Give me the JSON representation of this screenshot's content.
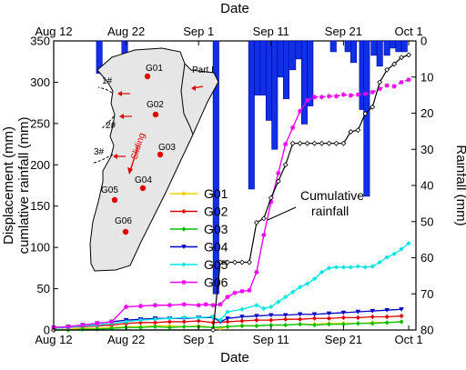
{
  "chart_data": {
    "type": "line",
    "xlabel": "Date",
    "x_top_label": "Date",
    "ylabel_left_line1": "Displacement (mm)",
    "ylabel_left_line2": "cumlative rainfall (mm)",
    "ylabel_right": "Rainfall (mm)",
    "xlim": [
      0,
      50
    ],
    "ylim_left": [
      0,
      350
    ],
    "ylim_right": [
      0,
      80
    ],
    "right_axis_inverted": true,
    "x_ticks": [
      {
        "x": 0,
        "label": "Aug 12"
      },
      {
        "x": 10,
        "label": "Aug 22"
      },
      {
        "x": 20,
        "label": "Sep 1"
      },
      {
        "x": 30,
        "label": "Sep 11"
      },
      {
        "x": 40,
        "label": "Sep 21"
      },
      {
        "x": 49,
        "label": "Oct 1"
      }
    ],
    "y_left_ticks": [
      0,
      50,
      100,
      150,
      200,
      250,
      300,
      350
    ],
    "y_right_ticks": [
      0,
      10,
      20,
      30,
      40,
      50,
      60,
      70,
      80
    ],
    "colors": {
      "G01": "#f0d000",
      "G02": "#e00000",
      "G03": "#00c000",
      "G04": "#0000c8",
      "G05": "#00e6e6",
      "G06": "#ee00ee",
      "cumulative": "#000000",
      "rainfall": "#1030e8"
    },
    "series": [
      {
        "name": "G01",
        "marker": "diamond",
        "x": [
          0,
          2,
          4,
          6,
          8,
          10,
          12,
          14,
          16,
          18,
          20,
          22,
          23,
          24,
          26,
          28,
          30,
          32,
          34,
          36,
          38,
          40,
          42,
          44,
          46,
          48
        ],
        "y": [
          0,
          1,
          2,
          2,
          3,
          4,
          4,
          5,
          5,
          4,
          5,
          3,
          2,
          4,
          5,
          5,
          6,
          6,
          7,
          7,
          8,
          8,
          8,
          9,
          9,
          10
        ]
      },
      {
        "name": "G02",
        "marker": "diamond",
        "x": [
          0,
          2,
          4,
          6,
          8,
          10,
          12,
          14,
          16,
          18,
          20,
          22,
          24,
          26,
          28,
          30,
          32,
          34,
          36,
          38,
          40,
          42,
          44,
          46,
          48
        ],
        "y": [
          2,
          3,
          4,
          5,
          6,
          8,
          9,
          9,
          10,
          10,
          11,
          9,
          10,
          11,
          12,
          12,
          13,
          13,
          14,
          14,
          15,
          15,
          16,
          16,
          17
        ]
      },
      {
        "name": "G03",
        "marker": "diamond",
        "x": [
          0,
          2,
          4,
          6,
          8,
          10,
          12,
          14,
          16,
          18,
          20,
          22,
          24,
          26,
          28,
          30,
          32,
          34,
          36,
          38,
          40,
          42,
          44,
          46,
          48
        ],
        "y": [
          0,
          0,
          1,
          1,
          2,
          3,
          3,
          4,
          3,
          4,
          4,
          3,
          4,
          5,
          5,
          6,
          6,
          7,
          6,
          7,
          7,
          8,
          8,
          9,
          10
        ]
      },
      {
        "name": "G04",
        "marker": "triangle-down",
        "x": [
          0,
          2,
          4,
          6,
          8,
          10,
          12,
          14,
          16,
          18,
          20,
          22,
          23,
          24,
          26,
          28,
          30,
          32,
          34,
          36,
          38,
          40,
          42,
          44,
          46,
          48
        ],
        "y": [
          3,
          4,
          6,
          8,
          10,
          12,
          13,
          14,
          14,
          14,
          15,
          15,
          10,
          14,
          16,
          17,
          18,
          18,
          19,
          19,
          20,
          21,
          22,
          23,
          24,
          25
        ]
      },
      {
        "name": "G05",
        "marker": "diamond",
        "x": [
          0,
          2,
          4,
          6,
          8,
          10,
          12,
          14,
          16,
          18,
          20,
          22,
          23,
          24,
          26,
          28,
          29,
          30,
          31,
          32,
          33,
          34,
          35,
          36,
          37,
          38,
          39,
          40,
          41,
          42,
          43,
          44,
          45,
          46,
          47,
          48,
          49
        ],
        "y": [
          2,
          3,
          5,
          6,
          8,
          10,
          12,
          13,
          14,
          15,
          15,
          16,
          12,
          22,
          25,
          30,
          26,
          28,
          34,
          40,
          46,
          52,
          56,
          62,
          70,
          75,
          76,
          76,
          76,
          77,
          76,
          77,
          82,
          88,
          92,
          98,
          105
        ]
      },
      {
        "name": "G06",
        "marker": "star",
        "x": [
          0,
          2,
          4,
          6,
          8,
          10,
          12,
          14,
          16,
          18,
          20,
          21,
          22,
          23,
          24,
          25,
          26,
          27,
          28,
          29,
          30,
          31,
          32,
          33,
          34,
          35,
          36,
          37,
          38,
          39,
          40,
          41,
          42,
          43,
          44,
          45,
          46,
          47,
          48,
          49
        ],
        "y": [
          3,
          4,
          6,
          8,
          10,
          28,
          29,
          30,
          30,
          31,
          30,
          31,
          30,
          31,
          40,
          45,
          47,
          48,
          70,
          115,
          155,
          190,
          225,
          245,
          265,
          278,
          282,
          282,
          283,
          283,
          285,
          284,
          285,
          286,
          288,
          292,
          296,
          295,
          300,
          303
        ],
        "dashed_from": 35
      },
      {
        "name": "Cumulative rainfall",
        "x": [
          0,
          22,
          23,
          24,
          25,
          26,
          27,
          28,
          29,
          30,
          31,
          32,
          33,
          34,
          35,
          36,
          37,
          38,
          39,
          40,
          41,
          42,
          43,
          44,
          45,
          46,
          47,
          48,
          49
        ],
        "y": [
          0,
          0,
          82,
          82,
          82,
          82,
          82,
          130,
          135,
          160,
          180,
          200,
          226,
          226,
          226,
          226,
          226,
          226,
          226,
          226,
          240,
          242,
          262,
          270,
          300,
          315,
          322,
          330,
          333
        ]
      }
    ],
    "rainfall_bars": [
      {
        "x": 6.3,
        "value": 9
      },
      {
        "x": 9.8,
        "value": 4
      },
      {
        "x": 22.4,
        "value": 70
      },
      {
        "x": 27.3,
        "value": 41
      },
      {
        "x": 28.1,
        "value": 15
      },
      {
        "x": 28.9,
        "value": 15
      },
      {
        "x": 29.7,
        "value": 22
      },
      {
        "x": 30.5,
        "value": 30
      },
      {
        "x": 31.3,
        "value": 10
      },
      {
        "x": 32.1,
        "value": 16
      },
      {
        "x": 33.0,
        "value": 8
      },
      {
        "x": 33.8,
        "value": 5
      },
      {
        "x": 34.6,
        "value": 23
      },
      {
        "x": 35.4,
        "value": 18
      },
      {
        "x": 38.6,
        "value": 3
      },
      {
        "x": 40.6,
        "value": 3
      },
      {
        "x": 41.4,
        "value": 6
      },
      {
        "x": 42.6,
        "value": 19
      },
      {
        "x": 43.2,
        "value": 43
      },
      {
        "x": 44.2,
        "value": 4
      },
      {
        "x": 45.0,
        "value": 7
      },
      {
        "x": 46.0,
        "value": 4
      },
      {
        "x": 46.8,
        "value": 2
      },
      {
        "x": 47.6,
        "value": 3
      },
      {
        "x": 48.4,
        "value": 3
      }
    ],
    "legend": [
      "G01",
      "G02",
      "G03",
      "G04",
      "G05",
      "G06"
    ],
    "legend_position": "lower-center",
    "annotation": {
      "line1": "Cumulative",
      "line2": "rainfall"
    },
    "inset_map": {
      "points": [
        "G01",
        "G02",
        "G03",
        "G04",
        "G05",
        "G06"
      ],
      "cracks": [
        "1#",
        "2#",
        "3#"
      ],
      "part_label": "Part I",
      "direction_label": "Sliding"
    }
  }
}
